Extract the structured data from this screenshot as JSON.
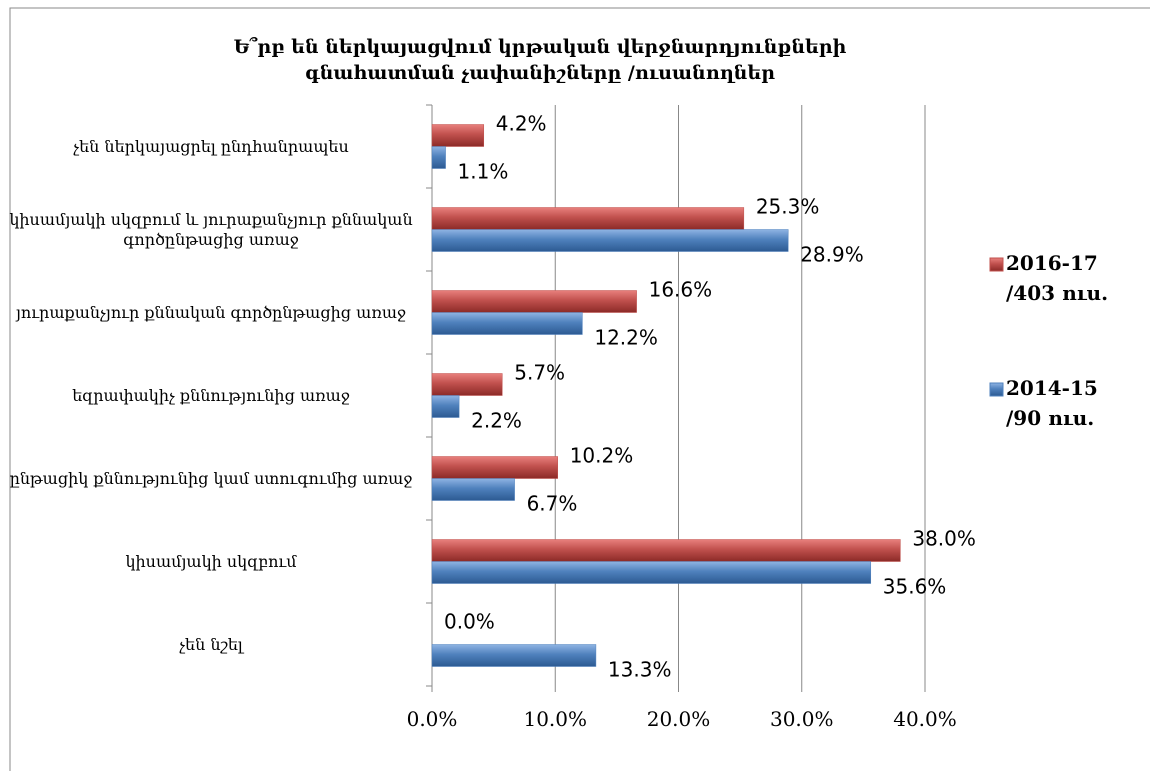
{
  "chart_data": {
    "type": "bar",
    "orientation": "horizontal",
    "title": "Ե՞րբ են ներկայացվում կրթական վերջնարդյունքների գնահատման չափանիշները /ուսանողներ",
    "categories": [
      "չեն  ներկայացրել ընդհանրապես",
      "կիսամյակի սկզբում և յուրաքանչյուր քննական գործընթացից առաջ",
      "յուրաքանչյուր քննական գործընթացից առաջ",
      "եզրափակիչ քննությունից առաջ",
      "ընթացիկ քննությունից կամ ստուգումից առաջ",
      "կիսամյակի սկզբում",
      "չեն նշել"
    ],
    "series": [
      {
        "name": "2016-17 /403 ուս.",
        "color": "#c0504d",
        "values": [
          4.2,
          25.3,
          16.6,
          5.7,
          10.2,
          38.0,
          0.0
        ],
        "value_labels": [
          "4.2%",
          "25.3%",
          "16.6%",
          "5.7%",
          "10.2%",
          "38.0%",
          "0.0%"
        ]
      },
      {
        "name": "2014-15 /90 ուս.",
        "color": "#4f81bd",
        "values": [
          1.1,
          28.9,
          12.2,
          2.2,
          6.7,
          35.6,
          13.3
        ],
        "value_labels": [
          "1.1%",
          "28.9%",
          "12.2%",
          "2.2%",
          "6.7%",
          "35.6%",
          "13.3%"
        ]
      }
    ],
    "xlim": [
      0,
      40
    ],
    "xticks": [
      {
        "value": 0,
        "label": "0.0%"
      },
      {
        "value": 10,
        "label": "10.0%"
      },
      {
        "value": 20,
        "label": "20.0%"
      },
      {
        "value": 30,
        "label": "30.0%"
      },
      {
        "value": 40,
        "label": "40.0%"
      }
    ],
    "grid": true,
    "legend": "right"
  }
}
